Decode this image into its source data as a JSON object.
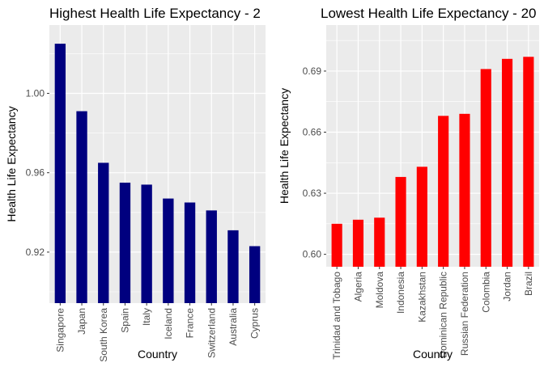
{
  "chart_data": [
    {
      "type": "bar",
      "title": "Highest Health Life Expectancy - 2",
      "xlabel": "Country",
      "ylabel": "Health Life Expectancy",
      "categories": [
        "Singapore",
        "Japan",
        "South Korea",
        "Spain",
        "Italy",
        "Iceland",
        "France",
        "Switzerland",
        "Australia",
        "Cyprus"
      ],
      "values": [
        1.025,
        0.991,
        0.965,
        0.955,
        0.954,
        0.947,
        0.945,
        0.941,
        0.931,
        0.923
      ],
      "ylim": [
        0.8943,
        1.0344
      ],
      "yticks": [
        0.92,
        0.96,
        1.0
      ],
      "ytick_labels": [
        "0.92",
        "0.96",
        "1.00"
      ],
      "color": "#00007F",
      "grid": true,
      "background": "#EBEBEB"
    },
    {
      "type": "bar",
      "title": "Lowest Health Life Expectancy - 20",
      "xlabel": "Country",
      "ylabel": "Health Life Expectancy",
      "categories": [
        "Trinidad and Tobago",
        "Algeria",
        "Moldova",
        "Indonesia",
        "Kazakhstan",
        "Dominican Republic",
        "Russian Federation",
        "Colombia",
        "Jordan",
        "Brazil"
      ],
      "values": [
        0.615,
        0.617,
        0.618,
        0.638,
        0.643,
        0.668,
        0.669,
        0.691,
        0.696,
        0.697
      ],
      "ylim": [
        0.5939,
        0.7126
      ],
      "yticks": [
        0.6,
        0.63,
        0.66,
        0.69
      ],
      "ytick_labels": [
        "0.60",
        "0.63",
        "0.66",
        "0.69"
      ],
      "color": "#FF0000",
      "grid": true,
      "background": "#EBEBEB"
    }
  ]
}
